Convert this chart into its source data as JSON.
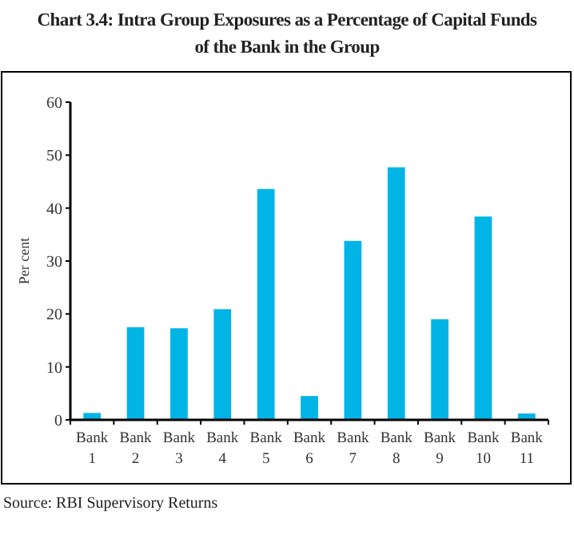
{
  "chart_data": {
    "type": "bar",
    "title": "Chart 3.4: Intra Group Exposures as a Percentage of Capital Funds\nof the Bank in the Group",
    "ylabel": "Per cent",
    "categories": [
      "Bank 1",
      "Bank 2",
      "Bank 3",
      "Bank 4",
      "Bank 5",
      "Bank 6",
      "Bank 7",
      "Bank 8",
      "Bank 9",
      "Bank 10",
      "Bank 11"
    ],
    "values": [
      1.3,
      17.5,
      17.3,
      20.9,
      43.6,
      4.5,
      33.8,
      47.7,
      19.0,
      38.4,
      1.2
    ],
    "color": "#00b4e6",
    "ylim": [
      0,
      60
    ],
    "yticks": [
      0,
      10,
      20,
      30,
      40,
      50,
      60
    ],
    "grid": false,
    "annotations": [
      "Source: RBI Supervisory Returns"
    ]
  }
}
